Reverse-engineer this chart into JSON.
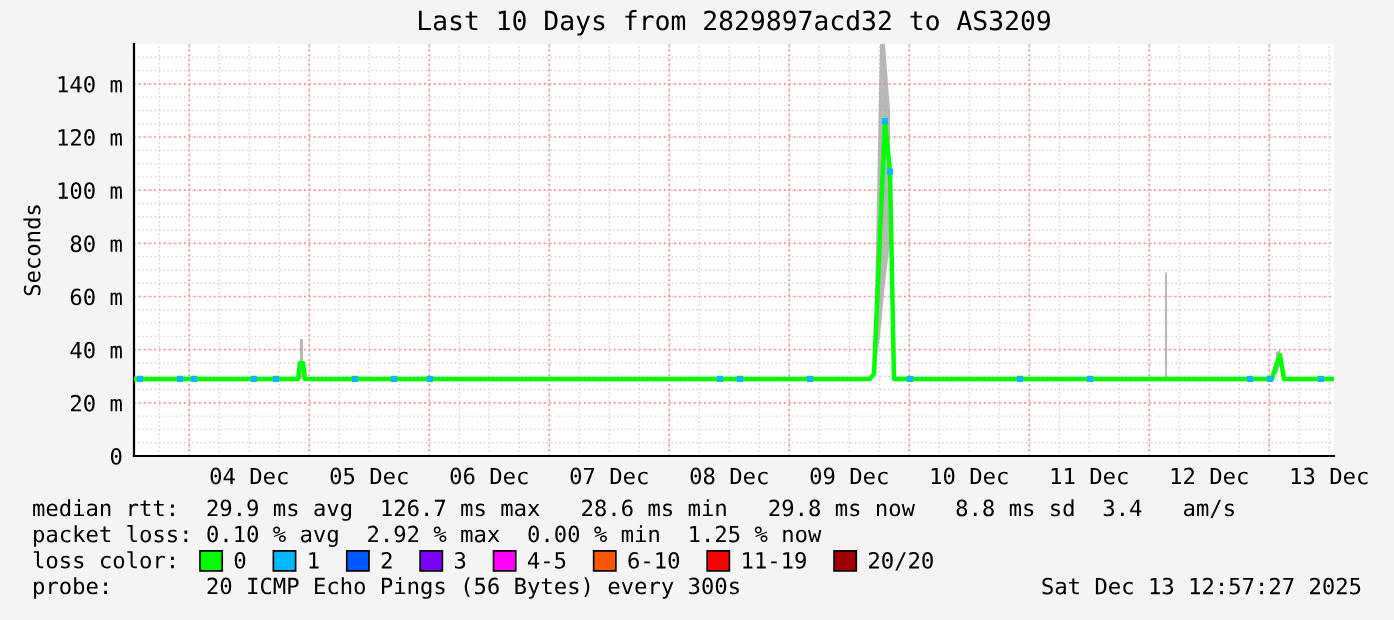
{
  "chart_data": {
    "type": "line",
    "title": "Last 10 Days from 2829897acd32 to AS3209",
    "ylabel": "Seconds",
    "xlim": [
      "2025-12-03T12:57",
      "2025-12-13T12:57"
    ],
    "xticks": [
      {
        "value": "2025-12-04T12:00",
        "label": "04 Dec"
      },
      {
        "value": "2025-12-05T12:00",
        "label": "05 Dec"
      },
      {
        "value": "2025-12-06T12:00",
        "label": "06 Dec"
      },
      {
        "value": "2025-12-07T12:00",
        "label": "07 Dec"
      },
      {
        "value": "2025-12-08T12:00",
        "label": "08 Dec"
      },
      {
        "value": "2025-12-09T12:00",
        "label": "09 Dec"
      },
      {
        "value": "2025-12-10T12:00",
        "label": "10 Dec"
      },
      {
        "value": "2025-12-11T12:00",
        "label": "11 Dec"
      },
      {
        "value": "2025-12-12T12:00",
        "label": "12 Dec"
      },
      {
        "value": "2025-12-13T12:00",
        "label": "13 Dec"
      }
    ],
    "ylim": [
      0,
      155
    ],
    "yticks": [
      0,
      {
        "value": 20,
        "label": "20 m"
      },
      {
        "value": 40,
        "label": "40 m"
      },
      {
        "value": 60,
        "label": "60 m"
      },
      {
        "value": 80,
        "label": "80 m"
      },
      {
        "value": 100,
        "label": "100 m"
      },
      {
        "value": 120,
        "label": "120 m"
      },
      {
        "value": 140,
        "label": "140 m"
      }
    ],
    "grid": true,
    "legend": "bottom",
    "legend_title": "loss color:",
    "series": [
      {
        "name": "0",
        "color": "#00ff00",
        "x": [
          "2025-12-03T12:57",
          "2025-12-04T21:45",
          "2025-12-04T22:09",
          "2025-12-04T22:45",
          "2025-12-04T23:09",
          "2025-12-09T16:09",
          "2025-12-09T16:57",
          "2025-12-09T18:09",
          "2025-12-09T19:09",
          "2025-12-09T20:09",
          "2025-12-09T20:57",
          "2025-12-12T03:09",
          "2025-12-12T03:21",
          "2025-12-12T03:33",
          "2025-12-13T00:33",
          "2025-12-13T01:21",
          "2025-12-13T02:09",
          "2025-12-13T02:57",
          "2025-12-13T12:57"
        ],
        "values": [
          29,
          29,
          35,
          35,
          29,
          29,
          31,
          83,
          126,
          107,
          29,
          29,
          29,
          29,
          29,
          34,
          38,
          29,
          29
        ],
        "lower": [
          null,
          null,
          29,
          29,
          null,
          null,
          29,
          45,
          65,
          80,
          null,
          29,
          29,
          29,
          null,
          30,
          34,
          null,
          null
        ],
        "upper": [
          null,
          null,
          44,
          44,
          null,
          null,
          40,
          155,
          155,
          130,
          null,
          69,
          69,
          69,
          null,
          39,
          40,
          null,
          null
        ]
      },
      {
        "name": "1",
        "color": "#00b8ff",
        "type": "scatter",
        "x": [
          "2025-12-03T14:09",
          "2025-12-03T22:09",
          "2025-12-04T00:57",
          "2025-12-04T12:57",
          "2025-12-04T17:21",
          "2025-12-05T09:09",
          "2025-12-05T16:57",
          "2025-12-06T00:09",
          "2025-12-08T10:09",
          "2025-12-08T14:09",
          "2025-12-09T04:09",
          "2025-12-09T19:09",
          "2025-12-09T20:09",
          "2025-12-10T00:09",
          "2025-12-10T22:09",
          "2025-12-11T12:09",
          "2025-12-12T20:09",
          "2025-12-13T00:09",
          "2025-12-13T10:21"
        ],
        "values": [
          29,
          29,
          29,
          29,
          29,
          29,
          29,
          29,
          29,
          29,
          29,
          126,
          107,
          29,
          29,
          29,
          29,
          29,
          29
        ]
      },
      {
        "name": "2",
        "color": "#0059ff",
        "type": "scatter"
      },
      {
        "name": "3",
        "color": "#7e00ff",
        "type": "scatter"
      },
      {
        "name": "4-5",
        "color": "#ff00ff",
        "type": "scatter"
      },
      {
        "name": "6-10",
        "color": "#ff5500",
        "type": "scatter"
      },
      {
        "name": "11-19",
        "color": "#ff0000",
        "type": "scatter"
      },
      {
        "name": "20/20",
        "color": "#a10000",
        "type": "scatter"
      }
    ],
    "annotations": [
      "median rtt:  29.9 ms avg  126.7 ms max   28.6 ms min   29.8 ms now   8.8 ms sd  3.4   am/s",
      "packet loss: 0.10 % avg  2.92 % max  0.00 % min  1.25 % now",
      "probe:       20 ICMP Echo Pings (56 Bytes) every 300s",
      "Sat Dec 13 12:57:27 2025"
    ]
  }
}
